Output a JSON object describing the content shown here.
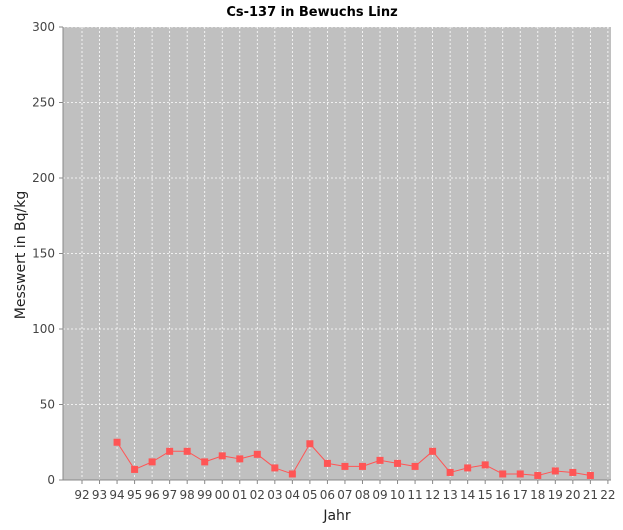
{
  "chart_data": {
    "type": "line",
    "title": "Cs-137 in Bewuchs Linz",
    "xlabel": "Jahr",
    "ylabel": "Messwert in Bq/kg",
    "ylim": [
      0,
      300
    ],
    "yticks": [
      "0",
      "50",
      "100",
      "150",
      "200",
      "250",
      "300"
    ],
    "categories": [
      "92",
      "93",
      "94",
      "95",
      "96",
      "97",
      "98",
      "99",
      "00",
      "01",
      "02",
      "03",
      "04",
      "05",
      "06",
      "07",
      "08",
      "09",
      "10",
      "11",
      "12",
      "13",
      "14",
      "15",
      "16",
      "17",
      "18",
      "19",
      "20",
      "21",
      "22"
    ],
    "series": [
      {
        "color": "#ff5555",
        "values": [
          null,
          null,
          25,
          7,
          12,
          19,
          19,
          12,
          16,
          14,
          17,
          8,
          4,
          24,
          11,
          9,
          9,
          13,
          11,
          9,
          19,
          5,
          8,
          10,
          4,
          4,
          3,
          6,
          5,
          3,
          null
        ]
      }
    ],
    "grid": true,
    "plot_background": "#c0c0c0",
    "grid_color": "#ffffff"
  }
}
